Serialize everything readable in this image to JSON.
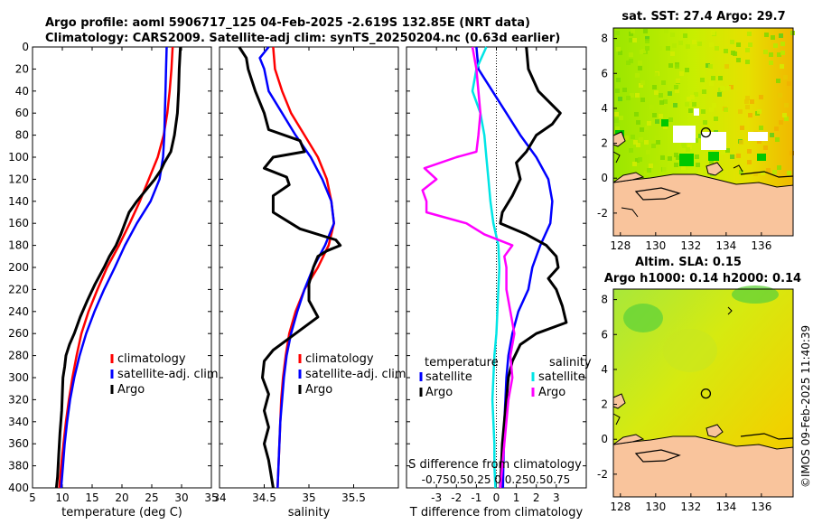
{
  "titles": {
    "line1": "Argo profile: aoml 5906717_125 04-Feb-2025 -2.619S 132.85E (NRT data)",
    "line2": "Climatology: CARS2009. Satellite-adj clim: synTS_20250204.nc (0.63d earlier)"
  },
  "stamp": "©IMOS 09-Feb-2025 11:40:39",
  "colors": {
    "climatology": "#ff0000",
    "satellite": "#0000ff",
    "argo": "#000000",
    "sat_salinity_diff": "#00e5e5",
    "clim_salinity_diff": "#ff00ff",
    "land": "#f9c49c"
  },
  "chart_data": [
    {
      "id": "temperature",
      "type": "line",
      "xlabel": "temperature (deg C)",
      "ylabel": "",
      "xlim": [
        5,
        35
      ],
      "ylim": [
        400,
        0
      ],
      "xticks": [
        "5",
        "10",
        "15",
        "20",
        "25",
        "30",
        "35"
      ],
      "xtick_values": [
        5,
        10,
        15,
        20,
        25,
        30,
        35
      ],
      "yticks": [
        "0",
        "20",
        "40",
        "60",
        "80",
        "100",
        "120",
        "140",
        "160",
        "180",
        "200",
        "220",
        "240",
        "260",
        "280",
        "300",
        "320",
        "340",
        "360",
        "380",
        "400"
      ],
      "ytick_values": [
        0,
        20,
        40,
        60,
        80,
        100,
        120,
        140,
        160,
        180,
        200,
        220,
        240,
        260,
        280,
        300,
        320,
        340,
        360,
        380,
        400
      ],
      "legend": [
        "climatology",
        "satellite-adj. clim",
        "Argo"
      ],
      "series": [
        {
          "name": "climatology",
          "color": "#ff0000",
          "depth": [
            0,
            20,
            40,
            60,
            80,
            100,
            120,
            140,
            160,
            180,
            200,
            220,
            240,
            260,
            280,
            300,
            320,
            340,
            360,
            380,
            400
          ],
          "values": [
            28.5,
            28.3,
            28.0,
            27.6,
            27.0,
            26.0,
            24.5,
            23.0,
            21.3,
            19.5,
            17.5,
            15.9,
            14.4,
            13.2,
            12.4,
            11.7,
            11.1,
            10.6,
            10.2,
            9.8,
            9.5
          ]
        },
        {
          "name": "satellite-adj. clim",
          "color": "#0000ff",
          "depth": [
            0,
            20,
            40,
            60,
            80,
            100,
            120,
            140,
            160,
            180,
            200,
            220,
            240,
            260,
            280,
            300,
            320,
            340,
            360,
            380,
            400
          ],
          "values": [
            27.5,
            27.4,
            27.3,
            27.2,
            27.1,
            26.9,
            26.3,
            24.8,
            22.5,
            20.5,
            18.8,
            17.0,
            15.4,
            14.0,
            12.9,
            12.0,
            11.3,
            10.8,
            10.4,
            10.1,
            9.8
          ]
        },
        {
          "name": "Argo",
          "color": "#000000",
          "depth": [
            0,
            20,
            40,
            60,
            80,
            95,
            105,
            112,
            120,
            130,
            140,
            150,
            160,
            170,
            180,
            190,
            200,
            215,
            230,
            245,
            260,
            270,
            280,
            290,
            300,
            315,
            330,
            350,
            370,
            390,
            400
          ],
          "values": [
            29.8,
            29.6,
            29.5,
            29.3,
            28.8,
            28.2,
            27.1,
            26.5,
            25.5,
            24.0,
            22.5,
            21.2,
            20.5,
            19.8,
            19.0,
            17.9,
            17.0,
            15.5,
            14.2,
            13.0,
            12.0,
            11.2,
            10.6,
            10.4,
            10.1,
            10.0,
            9.9,
            9.6,
            9.4,
            9.2,
            9.0
          ]
        }
      ]
    },
    {
      "id": "salinity",
      "type": "line",
      "xlabel": "salinity",
      "xlim": [
        34,
        36
      ],
      "ylim": [
        400,
        0
      ],
      "xticks": [
        "34",
        "34.5",
        "35",
        "35.5"
      ],
      "xtick_values": [
        34,
        34.5,
        35,
        35.5
      ],
      "legend": [
        "climatology",
        "satellite-adj. clim",
        "Argo"
      ],
      "series": [
        {
          "name": "climatology",
          "color": "#ff0000",
          "depth": [
            0,
            20,
            40,
            60,
            80,
            100,
            120,
            140,
            160,
            180,
            200,
            220,
            240,
            260,
            280,
            300,
            320,
            340,
            360,
            380,
            400
          ],
          "values": [
            34.6,
            34.62,
            34.7,
            34.8,
            34.95,
            35.1,
            35.2,
            35.25,
            35.28,
            35.22,
            35.1,
            34.95,
            34.85,
            34.78,
            34.74,
            34.71,
            34.69,
            34.68,
            34.67,
            34.66,
            34.65
          ]
        },
        {
          "name": "satellite-adj. clim",
          "color": "#0000ff",
          "depth": [
            0,
            10,
            20,
            40,
            60,
            80,
            100,
            120,
            140,
            160,
            180,
            200,
            220,
            240,
            260,
            280,
            300,
            320,
            340,
            360,
            380,
            400
          ],
          "values": [
            34.55,
            34.45,
            34.5,
            34.55,
            34.7,
            34.85,
            35.02,
            35.15,
            35.25,
            35.28,
            35.18,
            35.05,
            34.95,
            34.87,
            34.8,
            34.75,
            34.72,
            34.7,
            34.68,
            34.67,
            34.66,
            34.65
          ]
        },
        {
          "name": "Argo",
          "color": "#000000",
          "depth": [
            0,
            10,
            20,
            40,
            60,
            75,
            85,
            95,
            100,
            110,
            118,
            125,
            135,
            150,
            165,
            175,
            180,
            185,
            190,
            200,
            215,
            230,
            245,
            260,
            275,
            285,
            300,
            315,
            330,
            345,
            360,
            375,
            390,
            400
          ],
          "values": [
            34.22,
            34.3,
            34.32,
            34.4,
            34.5,
            34.55,
            34.9,
            34.95,
            34.6,
            34.5,
            34.75,
            34.78,
            34.6,
            34.6,
            34.9,
            35.3,
            35.35,
            35.2,
            35.1,
            35.05,
            35.0,
            35.0,
            35.1,
            34.85,
            34.6,
            34.5,
            34.48,
            34.55,
            34.5,
            34.55,
            34.5,
            34.55,
            34.58,
            34.6
          ]
        }
      ]
    },
    {
      "id": "difference",
      "type": "line",
      "xlabel": "T difference from climatology",
      "xlim": [
        -4.5,
        4.5
      ],
      "ylim": [
        400,
        0
      ],
      "xticks": [
        "-3",
        "-2",
        "-1",
        "0",
        "1",
        "2",
        "3"
      ],
      "xtick_values": [
        -3,
        -2,
        -1,
        0,
        1,
        2,
        3
      ],
      "top_label": "S difference from climatology",
      "top_ticks": "-0.750.50.25 0  0.250.50.75",
      "legend_left_title": "temperature",
      "legend_right_title": "salinity",
      "legend_left": [
        "satellite",
        "Argo"
      ],
      "legend_right": [
        "satellite",
        "Argo"
      ],
      "series": [
        {
          "name": "temperature satellite",
          "color": "#0000ff",
          "depth": [
            0,
            20,
            40,
            60,
            80,
            100,
            120,
            140,
            160,
            180,
            200,
            220,
            240,
            260,
            280,
            300,
            320,
            340,
            360,
            380,
            400
          ],
          "values": [
            -1.0,
            -0.9,
            -0.2,
            0.5,
            1.2,
            2.0,
            2.6,
            2.8,
            2.7,
            2.2,
            1.8,
            1.6,
            1.1,
            0.8,
            0.6,
            0.5,
            0.45,
            0.4,
            0.38,
            0.35,
            0.33
          ]
        },
        {
          "name": "temperature Argo",
          "color": "#000000",
          "depth": [
            0,
            20,
            40,
            60,
            70,
            80,
            95,
            105,
            120,
            135,
            150,
            160,
            170,
            180,
            190,
            200,
            210,
            220,
            235,
            250,
            260,
            270,
            285,
            300,
            320,
            340,
            360,
            380,
            400
          ],
          "values": [
            1.5,
            1.6,
            2.1,
            3.2,
            2.8,
            2.0,
            1.5,
            1.0,
            1.2,
            0.8,
            0.3,
            0.2,
            1.5,
            2.5,
            3.0,
            3.1,
            2.6,
            3.0,
            3.3,
            3.5,
            2.0,
            1.2,
            0.8,
            0.6,
            0.5,
            0.4,
            0.3,
            0.25,
            0.2
          ]
        },
        {
          "name": "salinity satellite",
          "color": "#00e5e5",
          "depth": [
            0,
            20,
            40,
            60,
            80,
            100,
            120,
            140,
            160,
            180,
            200,
            220,
            240,
            260,
            280,
            300,
            320,
            340,
            360,
            380,
            400
          ],
          "values": [
            -0.5,
            -1.0,
            -1.2,
            -0.8,
            -0.6,
            -0.5,
            -0.4,
            -0.3,
            -0.15,
            0.1,
            0.15,
            0.1,
            0.05,
            0.0,
            -0.1,
            -0.15,
            -0.2,
            -0.15,
            -0.1,
            -0.1,
            -0.05
          ]
        },
        {
          "name": "salinity Argo",
          "color": "#ff00ff",
          "depth": [
            0,
            20,
            40,
            60,
            80,
            95,
            100,
            110,
            120,
            130,
            140,
            150,
            160,
            170,
            180,
            190,
            200,
            220,
            240,
            260,
            280,
            300,
            320,
            340,
            360,
            380,
            400
          ],
          "values": [
            -1.2,
            -1.0,
            -0.9,
            -0.8,
            -0.9,
            -1.0,
            -2.0,
            -3.6,
            -3.0,
            -3.7,
            -3.5,
            -3.5,
            -1.5,
            -0.6,
            0.8,
            0.4,
            0.5,
            0.5,
            0.7,
            0.9,
            0.7,
            0.8,
            0.6,
            0.5,
            0.4,
            0.3,
            0.2
          ]
        }
      ]
    },
    {
      "id": "sst_map",
      "type": "heatmap",
      "title": "sat. SST: 27.4 Argo: 29.7",
      "xticks": [
        "128",
        "130",
        "132",
        "134",
        "136"
      ],
      "xtick_values": [
        128,
        130,
        132,
        134,
        136
      ],
      "yticks": [
        "8",
        "6",
        "4",
        "2",
        "0",
        "-2"
      ],
      "ytick_values": [
        8,
        6,
        4,
        2,
        0,
        -2
      ],
      "xlim": [
        127.6,
        137.8
      ],
      "ylim": [
        -3.3,
        8.6
      ],
      "argo_position": [
        132.85,
        2.62
      ]
    },
    {
      "id": "sla_map",
      "type": "heatmap",
      "title_line1": "Altim. SLA: 0.15",
      "title_line2": "Argo h1000: 0.14 h2000: 0.14",
      "xticks": [
        "128",
        "130",
        "132",
        "134",
        "136"
      ],
      "xtick_values": [
        128,
        130,
        132,
        134,
        136
      ],
      "yticks": [
        "8",
        "6",
        "4",
        "2",
        "0",
        "-2"
      ],
      "ytick_values": [
        8,
        6,
        4,
        2,
        0,
        -2
      ],
      "xlim": [
        127.6,
        137.8
      ],
      "ylim": [
        -3.3,
        8.6
      ],
      "argo_position": [
        132.85,
        2.62
      ]
    }
  ]
}
